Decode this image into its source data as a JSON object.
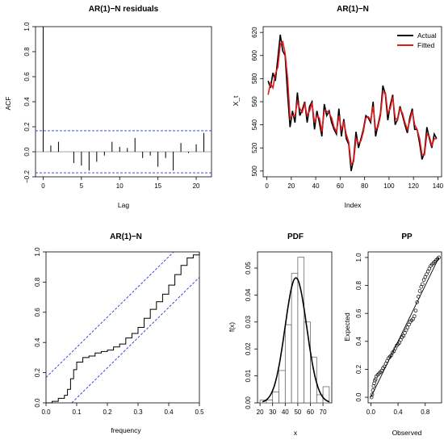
{
  "chart_data": [
    {
      "type": "bar",
      "title": "AR(1)−N residuals",
      "xlabel": "Lag",
      "ylabel": "ACF",
      "xlim": [
        0,
        21
      ],
      "ylim": [
        -0.2,
        1.0
      ],
      "xticks": [
        "0",
        "5",
        "10",
        "15",
        "20"
      ],
      "yticks": [
        "−0.2",
        "0.0",
        "0.2",
        "0.4",
        "0.6",
        "0.8",
        "1.0"
      ],
      "lags": [
        0,
        1,
        2,
        3,
        4,
        5,
        6,
        7,
        8,
        9,
        10,
        11,
        12,
        13,
        14,
        15,
        16,
        17,
        18,
        19,
        20,
        21
      ],
      "acf": [
        1.0,
        0.05,
        0.08,
        0.0,
        -0.09,
        -0.11,
        -0.15,
        -0.08,
        -0.03,
        0.08,
        0.04,
        0.03,
        0.11,
        -0.05,
        -0.03,
        -0.12,
        -0.05,
        -0.15,
        0.07,
        -0.01,
        0.06,
        0.15
      ],
      "confidence_band": [
        -0.168,
        0.168
      ]
    },
    {
      "type": "line",
      "title": "AR(1)−N",
      "xlabel": "Index",
      "ylabel": "X_t",
      "xlim": [
        0,
        140
      ],
      "ylim": [
        500,
        620
      ],
      "xticks": [
        "0",
        "20",
        "40",
        "60",
        "80",
        "100",
        "120",
        "140"
      ],
      "yticks": [
        "500",
        "520",
        "540",
        "560",
        "580",
        "600",
        "620"
      ],
      "legend_position": "top-right",
      "series": [
        {
          "name": "Actual",
          "color": "#000000",
          "x": [
            1,
            3,
            5,
            7,
            9,
            11,
            13,
            15,
            17,
            19,
            21,
            23,
            25,
            27,
            29,
            31,
            33,
            35,
            37,
            39,
            41,
            43,
            45,
            47,
            49,
            51,
            53,
            55,
            57,
            59,
            61,
            63,
            65,
            67,
            69,
            71,
            73,
            75,
            77,
            79,
            81,
            83,
            85,
            87,
            89,
            91,
            93,
            95,
            97,
            99,
            101,
            103,
            105,
            107,
            109,
            111,
            113,
            115,
            117,
            119,
            121,
            123,
            125,
            127,
            129,
            131,
            133,
            135,
            137,
            139
          ],
          "values": [
            578,
            572,
            585,
            578,
            598,
            618,
            604,
            600,
            566,
            538,
            552,
            542,
            568,
            548,
            553,
            560,
            542,
            556,
            560,
            536,
            552,
            542,
            530,
            558,
            548,
            552,
            542,
            536,
            532,
            554,
            530,
            545,
            528,
            523,
            500,
            510,
            534,
            520,
            528,
            536,
            548,
            546,
            542,
            560,
            530,
            540,
            550,
            574,
            566,
            544,
            557,
            566,
            540,
            545,
            556,
            548,
            540,
            533,
            546,
            554,
            536,
            536,
            524,
            510,
            516,
            538,
            528,
            520,
            532,
            528
          ]
        },
        {
          "name": "Fitted",
          "color": "#e41a1c",
          "x": [
            1,
            3,
            5,
            7,
            9,
            11,
            13,
            15,
            17,
            19,
            21,
            23,
            25,
            27,
            29,
            31,
            33,
            35,
            37,
            39,
            41,
            43,
            45,
            47,
            49,
            51,
            53,
            55,
            57,
            59,
            61,
            63,
            65,
            67,
            69,
            71,
            73,
            75,
            77,
            79,
            81,
            83,
            85,
            87,
            89,
            91,
            93,
            95,
            97,
            99,
            101,
            103,
            105,
            107,
            109,
            111,
            113,
            115,
            117,
            119,
            121,
            123,
            125,
            127,
            129,
            131,
            133,
            135,
            137,
            139
          ],
          "values": [
            566,
            576,
            572,
            584,
            590,
            610,
            612,
            602,
            580,
            546,
            548,
            548,
            560,
            554,
            551,
            558,
            548,
            552,
            559,
            542,
            548,
            546,
            534,
            552,
            552,
            550,
            546,
            538,
            534,
            548,
            536,
            542,
            532,
            525,
            506,
            508,
            528,
            524,
            526,
            534,
            546,
            547,
            544,
            556,
            536,
            538,
            548,
            568,
            568,
            550,
            554,
            564,
            546,
            544,
            554,
            550,
            542,
            536,
            543,
            552,
            540,
            536,
            528,
            514,
            514,
            532,
            530,
            522,
            528,
            528
          ]
        }
      ]
    },
    {
      "type": "line",
      "title": "AR(1)−N",
      "xlabel": "frequency",
      "ylabel": "",
      "xlim": [
        0,
        0.5
      ],
      "ylim": [
        0,
        1
      ],
      "xticks": [
        "0.0",
        "0.1",
        "0.2",
        "0.3",
        "0.4",
        "0.5"
      ],
      "yticks": [
        "0.0",
        "0.2",
        "0.4",
        "0.6",
        "0.8",
        "1.0"
      ],
      "series": [
        {
          "name": "",
          "color": "#000000",
          "x": [
            0.0,
            0.02,
            0.04,
            0.06,
            0.07,
            0.08,
            0.09,
            0.1,
            0.12,
            0.14,
            0.16,
            0.18,
            0.2,
            0.22,
            0.24,
            0.26,
            0.28,
            0.3,
            0.32,
            0.34,
            0.36,
            0.38,
            0.4,
            0.42,
            0.44,
            0.46,
            0.48,
            0.5
          ],
          "values": [
            0.0,
            0.01,
            0.03,
            0.05,
            0.09,
            0.16,
            0.22,
            0.27,
            0.3,
            0.31,
            0.33,
            0.34,
            0.35,
            0.37,
            0.39,
            0.43,
            0.46,
            0.5,
            0.56,
            0.62,
            0.67,
            0.72,
            0.78,
            0.85,
            0.91,
            0.96,
            0.98,
            1.0
          ]
        }
      ],
      "confidence_band_offset": 0.168
    },
    {
      "type": "bar",
      "title": "PDF",
      "xlabel": "x",
      "ylabel": "f(x)",
      "xlim": [
        20,
        75
      ],
      "ylim": [
        0,
        0.055
      ],
      "xticks": [
        "20",
        "30",
        "40",
        "50",
        "60",
        "70"
      ],
      "yticks": [
        "0.00",
        "0.01",
        "0.02",
        "0.03",
        "0.04",
        "0.05"
      ],
      "bin_edges": [
        20,
        25,
        30,
        35,
        40,
        45,
        50,
        55,
        60,
        65,
        70,
        75
      ],
      "densities": [
        0.001,
        0.001,
        0.004,
        0.012,
        0.029,
        0.048,
        0.054,
        0.03,
        0.017,
        0.003,
        0.006
      ],
      "density_curve": {
        "mean": 48.5,
        "sd": 8.6
      }
    },
    {
      "type": "scatter",
      "title": "PP",
      "xlabel": "Observed",
      "ylabel": "Expected",
      "xlim": [
        0,
        1
      ],
      "ylim": [
        0,
        1
      ],
      "xticks": [
        "0.0",
        "0.4",
        "0.8"
      ],
      "yticks": [
        "0.0",
        "0.2",
        "0.4",
        "0.6",
        "0.8",
        "1.0"
      ],
      "x": [
        0.01,
        0.02,
        0.03,
        0.04,
        0.05,
        0.06,
        0.07,
        0.08,
        0.1,
        0.12,
        0.14,
        0.16,
        0.18,
        0.2,
        0.22,
        0.24,
        0.26,
        0.28,
        0.3,
        0.32,
        0.34,
        0.36,
        0.38,
        0.4,
        0.42,
        0.44,
        0.46,
        0.48,
        0.5,
        0.52,
        0.54,
        0.56,
        0.58,
        0.6,
        0.62,
        0.64,
        0.66,
        0.68,
        0.7,
        0.72,
        0.74,
        0.76,
        0.78,
        0.8,
        0.82,
        0.84,
        0.86,
        0.88,
        0.9,
        0.92,
        0.94,
        0.96,
        0.98,
        1.0
      ],
      "y": [
        0.0,
        0.02,
        0.05,
        0.08,
        0.1,
        0.12,
        0.13,
        0.15,
        0.16,
        0.17,
        0.18,
        0.19,
        0.21,
        0.22,
        0.24,
        0.26,
        0.28,
        0.29,
        0.3,
        0.32,
        0.33,
        0.35,
        0.37,
        0.38,
        0.39,
        0.41,
        0.43,
        0.44,
        0.46,
        0.48,
        0.5,
        0.52,
        0.54,
        0.55,
        0.56,
        0.58,
        0.62,
        0.68,
        0.72,
        0.76,
        0.79,
        0.81,
        0.84,
        0.86,
        0.88,
        0.9,
        0.92,
        0.94,
        0.95,
        0.96,
        0.97,
        0.98,
        0.99,
        1.0
      ]
    }
  ]
}
